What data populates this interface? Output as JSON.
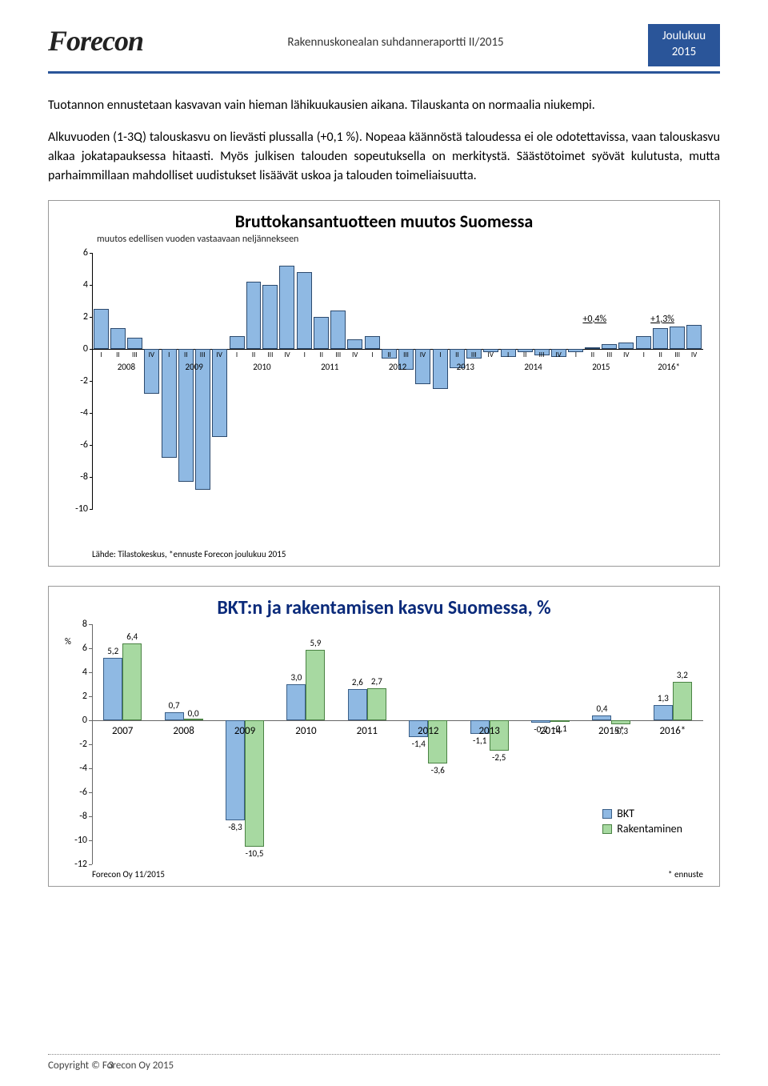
{
  "header": {
    "logo": "Forecon",
    "doc_title": "Rakennuskonealan suhdanneraportti II/2015",
    "badge_line1": "Joulukuu",
    "badge_line2": "2015"
  },
  "body": {
    "p1": "Tuotannon ennustetaan kasvavan vain hieman lähikuukausien aikana. Tilauskanta on normaalia niukempi.",
    "p2": "Alkuvuoden (1-3Q) talouskasvu on lievästi plussalla (+0,1 %). Nopeaa käännöstä taloudessa ei ole odotettavissa, vaan talouskasvu alkaa jokatapauksessa hitaasti. Myös julkisen talouden sopeutuksella on merkitystä. Säästötoimet syövät kulutusta, mutta parhaimmillaan mahdolliset uudistukset lisäävät uskoa ja talouden toimeliaisuutta."
  },
  "chart1": {
    "type": "bar",
    "title": "Bruttokansantuotteen muutos Suomessa",
    "subtitle": "muutos edellisen vuoden vastaavaan neljännekseen",
    "y_min": -10,
    "y_max": 6,
    "y_ticks": [
      6,
      4,
      2,
      0,
      -2,
      -4,
      -6,
      -8,
      -10
    ],
    "bar_color": "#8fb9e3",
    "bar_border": "#2c4a6e",
    "quarters": [
      "I",
      "II",
      "III",
      "IV"
    ],
    "years": [
      "2008",
      "2009",
      "2010",
      "2011",
      "2012",
      "2013",
      "2014",
      "2015",
      "2016*"
    ],
    "data": [
      [
        2.5,
        1.3,
        0.7,
        -2.8
      ],
      [
        -6.8,
        -8.3,
        -8.8,
        -5.5
      ],
      [
        0.8,
        4.2,
        4.0,
        5.2
      ],
      [
        4.8,
        2.0,
        2.4,
        0.6
      ],
      [
        0.8,
        -0.6,
        -1.3,
        -2.2
      ],
      [
        -2.5,
        -1.2,
        -0.6,
        -0.2
      ],
      [
        -0.5,
        -0.2,
        -0.4,
        -0.5
      ],
      [
        -0.2,
        0.1,
        0.3,
        0.4
      ],
      [
        0.8,
        1.3,
        1.4,
        1.5
      ]
    ],
    "annotations": [
      {
        "text": "+0,4%",
        "year_index": 7
      },
      {
        "text": "+1,3%",
        "year_index": 8
      }
    ],
    "source": "Lähde: Tilastokeskus, *ennuste Forecon joulukuu 2015"
  },
  "chart2": {
    "type": "grouped-bar",
    "title": "BKT:n ja rakentamisen kasvu Suomessa, %",
    "y_min": -12,
    "y_max": 8,
    "y_ticks": [
      8,
      6,
      4,
      2,
      0,
      -2,
      -4,
      -6,
      -8,
      -10,
      -12
    ],
    "pct_label": "%",
    "series": [
      {
        "name": "BKT",
        "color": "#8fb9e3",
        "border": "#3a5f88"
      },
      {
        "name": "Rakentaminen",
        "color": "#a7d9a1",
        "border": "#4a8243"
      }
    ],
    "years": [
      "2007",
      "2008",
      "2009",
      "2010",
      "2011",
      "2012",
      "2013",
      "2014",
      "2015*",
      "2016*"
    ],
    "data": [
      [
        5.2,
        6.4
      ],
      [
        0.7,
        0.0
      ],
      [
        -8.3,
        -10.5
      ],
      [
        3.0,
        5.9
      ],
      [
        2.6,
        2.7
      ],
      [
        -1.4,
        -3.6
      ],
      [
        -1.1,
        -2.5
      ],
      [
        -0.2,
        -0.1
      ],
      [
        0.4,
        -0.3
      ],
      [
        1.3,
        3.2
      ]
    ],
    "legend_labels": [
      "BKT",
      "Rakentaminen"
    ],
    "footer_left": "Forecon Oy 11/2015",
    "footer_right": "* ennuste"
  },
  "footer": {
    "copyright": "Copyright © Forecon Oy 2015",
    "page": "3"
  }
}
